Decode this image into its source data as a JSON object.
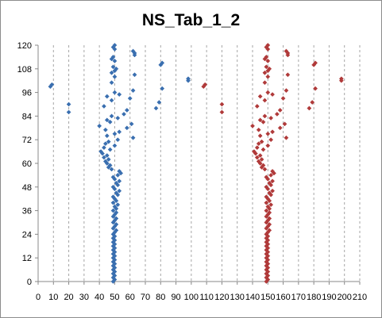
{
  "chart_data": {
    "type": "scatter",
    "title": "NS_Tab_1_2",
    "xlabel": "",
    "ylabel": "",
    "xlim": [
      0,
      210
    ],
    "ylim": [
      0,
      120
    ],
    "x_ticks": [
      0,
      10,
      20,
      30,
      40,
      50,
      60,
      70,
      80,
      90,
      100,
      110,
      120,
      130,
      140,
      150,
      160,
      170,
      180,
      190,
      200,
      210
    ],
    "y_ticks": [
      0,
      12,
      24,
      36,
      48,
      60,
      72,
      84,
      96,
      108,
      120
    ],
    "grid": "vertical dashed",
    "legend": "none",
    "colors": {
      "series_a": "#3a6fb0",
      "series_b": "#b03a3a"
    },
    "series": [
      {
        "color": "#3a6fb0",
        "points": [
          [
            49,
            0
          ],
          [
            50,
            1
          ],
          [
            49,
            2
          ],
          [
            50,
            3
          ],
          [
            49,
            4
          ],
          [
            50,
            5
          ],
          [
            49,
            6
          ],
          [
            50,
            7
          ],
          [
            49,
            8
          ],
          [
            50,
            9
          ],
          [
            49,
            10
          ],
          [
            50,
            11
          ],
          [
            49,
            12
          ],
          [
            50,
            13
          ],
          [
            49,
            14
          ],
          [
            50,
            15
          ],
          [
            49,
            16
          ],
          [
            50,
            17
          ],
          [
            49,
            18
          ],
          [
            50,
            19
          ],
          [
            49,
            20
          ],
          [
            50,
            21
          ],
          [
            49,
            22
          ],
          [
            50,
            23
          ],
          [
            49,
            24
          ],
          [
            50,
            25
          ],
          [
            51,
            26
          ],
          [
            49,
            27
          ],
          [
            50,
            28
          ],
          [
            51,
            29
          ],
          [
            49,
            30
          ],
          [
            50,
            31
          ],
          [
            51,
            32
          ],
          [
            49,
            33
          ],
          [
            50,
            34
          ],
          [
            51,
            35
          ],
          [
            49,
            36
          ],
          [
            51,
            37
          ],
          [
            50,
            38
          ],
          [
            52,
            39
          ],
          [
            49,
            40
          ],
          [
            51,
            41
          ],
          [
            50,
            42
          ],
          [
            49,
            43
          ],
          [
            52,
            44
          ],
          [
            51,
            45
          ],
          [
            53,
            46
          ],
          [
            50,
            47
          ],
          [
            49,
            48
          ],
          [
            52,
            49
          ],
          [
            51,
            50
          ],
          [
            53,
            51
          ],
          [
            50,
            52
          ],
          [
            49,
            53
          ],
          [
            52,
            54
          ],
          [
            54,
            55
          ],
          [
            53,
            56
          ],
          [
            48,
            57
          ],
          [
            46,
            58
          ],
          [
            47,
            59
          ],
          [
            45,
            60
          ],
          [
            44,
            61
          ],
          [
            46,
            62
          ],
          [
            43,
            63
          ],
          [
            45,
            64
          ],
          [
            42,
            65
          ],
          [
            41,
            66
          ],
          [
            47,
            67
          ],
          [
            43,
            68
          ],
          [
            50,
            69
          ],
          [
            44,
            70
          ],
          [
            46,
            71
          ],
          [
            52,
            72
          ],
          [
            62,
            73
          ],
          [
            45,
            74
          ],
          [
            50,
            75
          ],
          [
            53,
            76
          ],
          [
            44,
            77
          ],
          [
            58,
            78
          ],
          [
            40,
            79
          ],
          [
            61,
            80
          ],
          [
            47,
            81
          ],
          [
            45,
            82
          ],
          [
            52,
            83
          ],
          [
            48,
            84
          ],
          [
            56,
            85
          ],
          [
            20,
            86
          ],
          [
            58,
            87
          ],
          [
            77,
            88
          ],
          [
            43,
            89
          ],
          [
            20,
            90
          ],
          [
            79,
            91
          ],
          [
            48,
            92
          ],
          [
            60,
            93
          ],
          [
            45,
            94
          ],
          [
            53,
            95
          ],
          [
            50,
            96
          ],
          [
            62,
            97
          ],
          [
            81,
            98
          ],
          [
            8,
            99
          ],
          [
            9,
            100
          ],
          [
            48,
            101
          ],
          [
            98,
            102
          ],
          [
            98,
            103
          ],
          [
            50,
            104
          ],
          [
            63,
            105
          ],
          [
            48,
            106
          ],
          [
            50,
            107
          ],
          [
            51,
            108
          ],
          [
            49,
            109
          ],
          [
            80,
            110
          ],
          [
            81,
            111
          ],
          [
            50,
            112
          ],
          [
            48,
            113
          ],
          [
            49,
            114
          ],
          [
            63,
            115
          ],
          [
            63,
            116
          ],
          [
            62,
            117
          ],
          [
            50,
            118
          ],
          [
            49,
            119
          ],
          [
            50,
            120
          ]
        ]
      },
      {
        "color": "#b03a3a",
        "points": [
          [
            149,
            0
          ],
          [
            150,
            1
          ],
          [
            149,
            2
          ],
          [
            150,
            3
          ],
          [
            149,
            4
          ],
          [
            150,
            5
          ],
          [
            149,
            6
          ],
          [
            150,
            7
          ],
          [
            149,
            8
          ],
          [
            150,
            9
          ],
          [
            149,
            10
          ],
          [
            150,
            11
          ],
          [
            149,
            12
          ],
          [
            150,
            13
          ],
          [
            149,
            14
          ],
          [
            150,
            15
          ],
          [
            149,
            16
          ],
          [
            150,
            17
          ],
          [
            149,
            18
          ],
          [
            150,
            19
          ],
          [
            149,
            20
          ],
          [
            150,
            21
          ],
          [
            149,
            22
          ],
          [
            150,
            23
          ],
          [
            149,
            24
          ],
          [
            150,
            25
          ],
          [
            151,
            26
          ],
          [
            149,
            27
          ],
          [
            150,
            28
          ],
          [
            151,
            29
          ],
          [
            149,
            30
          ],
          [
            150,
            31
          ],
          [
            151,
            32
          ],
          [
            149,
            33
          ],
          [
            150,
            34
          ],
          [
            151,
            35
          ],
          [
            149,
            36
          ],
          [
            151,
            37
          ],
          [
            150,
            38
          ],
          [
            152,
            39
          ],
          [
            149,
            40
          ],
          [
            151,
            41
          ],
          [
            150,
            42
          ],
          [
            149,
            43
          ],
          [
            152,
            44
          ],
          [
            151,
            45
          ],
          [
            153,
            46
          ],
          [
            150,
            47
          ],
          [
            149,
            48
          ],
          [
            152,
            49
          ],
          [
            151,
            50
          ],
          [
            153,
            51
          ],
          [
            150,
            52
          ],
          [
            149,
            53
          ],
          [
            152,
            54
          ],
          [
            154,
            55
          ],
          [
            153,
            56
          ],
          [
            148,
            57
          ],
          [
            146,
            58
          ],
          [
            147,
            59
          ],
          [
            145,
            60
          ],
          [
            144,
            61
          ],
          [
            146,
            62
          ],
          [
            143,
            63
          ],
          [
            145,
            64
          ],
          [
            142,
            65
          ],
          [
            141,
            66
          ],
          [
            147,
            67
          ],
          [
            143,
            68
          ],
          [
            150,
            69
          ],
          [
            144,
            70
          ],
          [
            146,
            71
          ],
          [
            152,
            72
          ],
          [
            162,
            73
          ],
          [
            145,
            74
          ],
          [
            150,
            75
          ],
          [
            153,
            76
          ],
          [
            144,
            77
          ],
          [
            158,
            78
          ],
          [
            140,
            79
          ],
          [
            161,
            80
          ],
          [
            147,
            81
          ],
          [
            145,
            82
          ],
          [
            152,
            83
          ],
          [
            148,
            84
          ],
          [
            156,
            85
          ],
          [
            120,
            86
          ],
          [
            158,
            87
          ],
          [
            177,
            88
          ],
          [
            143,
            89
          ],
          [
            120,
            90
          ],
          [
            179,
            91
          ],
          [
            148,
            92
          ],
          [
            160,
            93
          ],
          [
            145,
            94
          ],
          [
            153,
            95
          ],
          [
            150,
            96
          ],
          [
            162,
            97
          ],
          [
            181,
            98
          ],
          [
            108,
            99
          ],
          [
            109,
            100
          ],
          [
            148,
            101
          ],
          [
            198,
            102
          ],
          [
            198,
            103
          ],
          [
            150,
            104
          ],
          [
            163,
            105
          ],
          [
            148,
            106
          ],
          [
            150,
            107
          ],
          [
            151,
            108
          ],
          [
            149,
            109
          ],
          [
            180,
            110
          ],
          [
            181,
            111
          ],
          [
            150,
            112
          ],
          [
            148,
            113
          ],
          [
            149,
            114
          ],
          [
            163,
            115
          ],
          [
            163,
            116
          ],
          [
            162,
            117
          ],
          [
            150,
            118
          ],
          [
            149,
            119
          ],
          [
            150,
            120
          ]
        ]
      }
    ]
  }
}
